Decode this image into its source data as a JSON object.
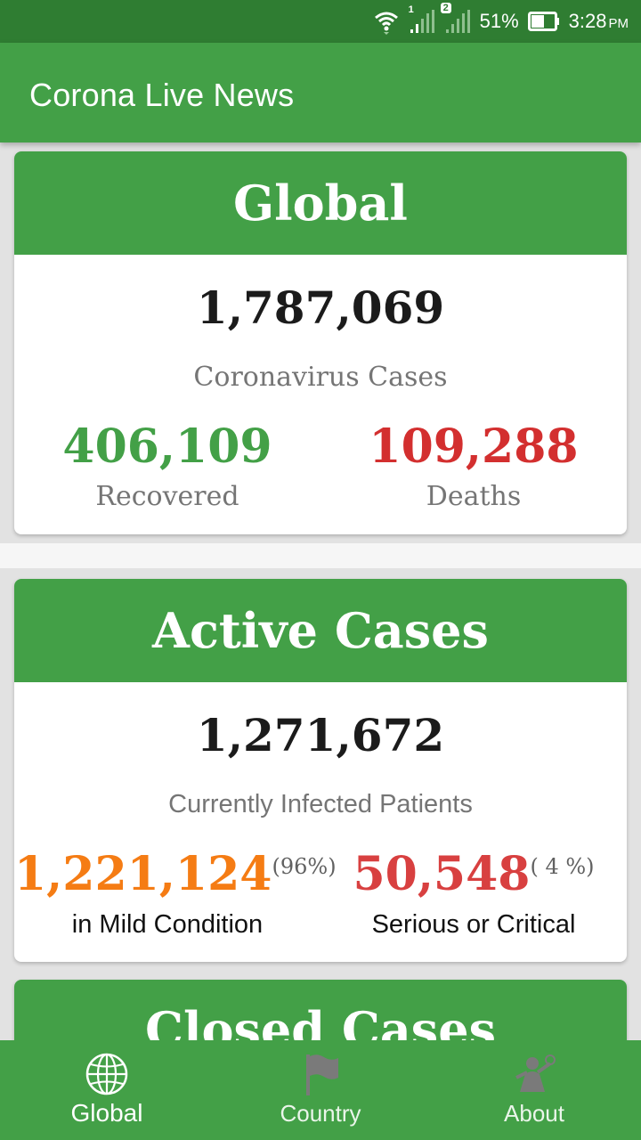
{
  "status_bar": {
    "sim1_label": "1",
    "sim2_label": "2",
    "battery": "51%",
    "time": "3:28",
    "time_suffix": "PM"
  },
  "app_bar": {
    "title": "Corona Live News"
  },
  "global_card": {
    "title": "Global",
    "total_cases": "1,787,069",
    "total_cases_label": "Coronavirus Cases",
    "recovered": "406,109",
    "recovered_label": "Recovered",
    "deaths": "109,288",
    "deaths_label": "Deaths"
  },
  "active_card": {
    "title": "Active Cases",
    "total_active": "1,271,672",
    "total_active_label": "Currently Infected Patients",
    "mild": "1,221,124",
    "mild_pct": "(96%)",
    "mild_label": "in Mild Condition",
    "serious": "50,548",
    "serious_pct": "( 4 %)",
    "serious_label": "Serious or Critical"
  },
  "closed_card": {
    "title": "Closed Cases"
  },
  "bottom_nav": {
    "items": [
      {
        "label": "Global",
        "icon": "globe-icon",
        "active": true
      },
      {
        "label": "Country",
        "icon": "flag-icon",
        "active": false
      },
      {
        "label": "About",
        "icon": "person-icon",
        "active": false
      }
    ]
  },
  "colors": {
    "primary": "#43a047",
    "status_bar": "#2f7d32",
    "recovered": "#43a047",
    "deaths": "#d32f2f",
    "mild": "#f57c14",
    "serious": "#d84040"
  }
}
